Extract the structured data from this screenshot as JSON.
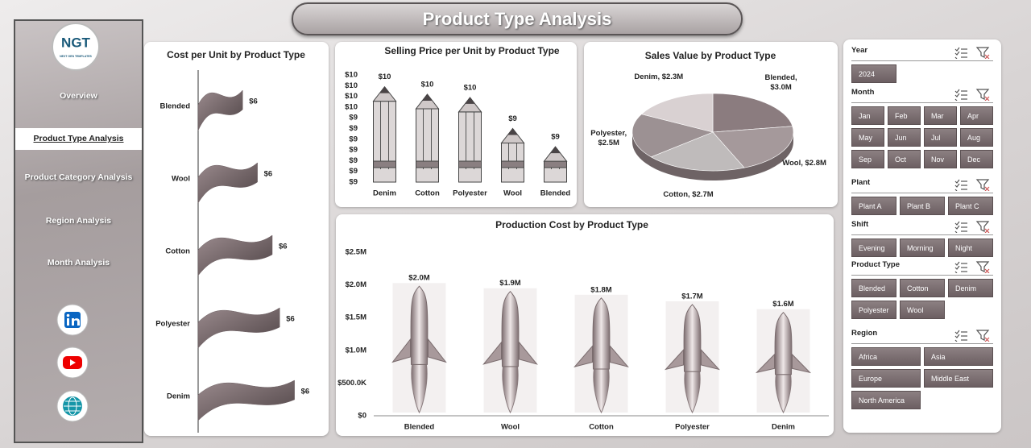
{
  "header": {
    "title": "Product Type Analysis"
  },
  "sidebar": {
    "logo": "NGT",
    "logo_tagline": "NEXT GEN TEMPLATES",
    "nav": [
      "Overview",
      "Product Type Analysis",
      "Product Category Analysis",
      "Region Analysis",
      "Month Analysis"
    ],
    "active": 1
  },
  "slicers": [
    {
      "title": "Year",
      "items": [
        "2024"
      ]
    },
    {
      "title": "Month",
      "items": [
        "Jan",
        "Feb",
        "Mar",
        "Apr",
        "May",
        "Jun",
        "Jul",
        "Aug",
        "Sep",
        "Oct",
        "Nov",
        "Dec"
      ]
    },
    {
      "title": "Plant",
      "items": [
        "Plant A",
        "Plant B",
        "Plant C"
      ]
    },
    {
      "title": "Shift",
      "items": [
        "Evening",
        "Morning",
        "Night"
      ]
    },
    {
      "title": "Product Type",
      "items": [
        "Blended",
        "Cotton",
        "Denim",
        "Polyester",
        "Wool"
      ]
    },
    {
      "title": "Region",
      "items": [
        "Africa",
        "Asia",
        "Europe",
        "Middle East",
        "North America"
      ]
    }
  ],
  "chart_data": [
    {
      "type": "hbar",
      "title": "Cost per Unit by Product Type",
      "categories": [
        "Blended",
        "Wool",
        "Cotton",
        "Polyester",
        "Denim"
      ],
      "values": [
        5.6,
        5.8,
        6.0,
        6.1,
        6.3
      ],
      "value_labels": [
        "$6",
        "$6",
        "$6",
        "$6",
        "$6"
      ],
      "xlim": [
        5,
        6.5
      ],
      "color": "#6b5d60"
    },
    {
      "type": "bar",
      "marker": "pencil",
      "title": "Selling Price per Unit by Product Type",
      "categories": [
        "Denim",
        "Cotton",
        "Polyester",
        "Wool",
        "Blended"
      ],
      "values": [
        9.69,
        9.62,
        9.59,
        9.3,
        9.13
      ],
      "value_labels": [
        "$10",
        "$10",
        "$10",
        "$9",
        "$9"
      ],
      "ylim": [
        8.8,
        9.8
      ],
      "yticks": [
        {
          "value": 8.8,
          "label": "$9"
        },
        {
          "value": 8.9,
          "label": "$9"
        },
        {
          "value": 9.0,
          "label": "$9"
        },
        {
          "value": 9.1,
          "label": "$9"
        },
        {
          "value": 9.2,
          "label": "$9"
        },
        {
          "value": 9.3,
          "label": "$9"
        },
        {
          "value": 9.4,
          "label": "$9"
        },
        {
          "value": 9.5,
          "label": "$10"
        },
        {
          "value": 9.6,
          "label": "$10"
        },
        {
          "value": 9.7,
          "label": "$10"
        },
        {
          "value": 9.8,
          "label": "$10"
        }
      ],
      "color": "#dcd7d7"
    },
    {
      "type": "pie",
      "title": "Sales Value by Product Type",
      "values": [
        3.0,
        2.8,
        2.7,
        2.5,
        2.3
      ],
      "value_labels": [
        "Blended, $3.0M",
        "Wool, $2.8M",
        "Cotton, $2.7M",
        "Polyester, $2.5M",
        "Denim, $2.3M"
      ],
      "colors": [
        "#8b7c7f",
        "#a5999b",
        "#bfbbbb",
        "#9c9193",
        "#d9d1d2"
      ]
    },
    {
      "type": "bar",
      "marker": "rocket",
      "title": "Production Cost by Product Type",
      "categories": [
        "Blended",
        "Wool",
        "Cotton",
        "Polyester",
        "Denim"
      ],
      "values": [
        1980000,
        1900000,
        1800000,
        1700000,
        1580000
      ],
      "value_labels": [
        "$2.0M",
        "$1.9M",
        "$1.8M",
        "$1.7M",
        "$1.6M"
      ],
      "ylim": [
        0,
        2500000
      ],
      "yticks": [
        {
          "value": 0,
          "label": "$0"
        },
        {
          "value": 500000,
          "label": "$500.0K"
        },
        {
          "value": 1000000,
          "label": "$1.0M"
        },
        {
          "value": 1500000,
          "label": "$1.5M"
        },
        {
          "value": 2000000,
          "label": "$2.0M"
        },
        {
          "value": 2500000,
          "label": "$2.5M"
        }
      ],
      "color": "#a8999b"
    }
  ]
}
